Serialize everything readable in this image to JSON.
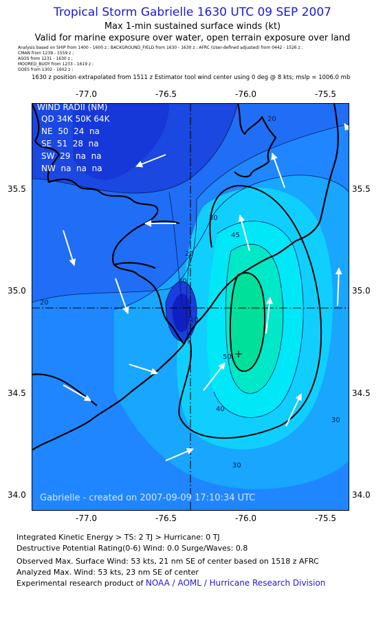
{
  "header": {
    "title": "Tropical Storm Gabrielle 1630 UTC 09 SEP 2007",
    "subtitle1": "Max 1-min sustained surface winds (kt)",
    "subtitle2": "Valid for marine exposure over water, open terrain exposure over land",
    "sources": [
      "Analysis based on SHIP from 1400 - 1600 z ;  BACKGROUND_FIELD from 1630 - 1630 z ;  AFRC (User-defined adjusted) from 0442 - 1526 z ;",
      "CMAN from 1239 - 1559 z ;",
      "ASOS from 1231 - 1630 z ;",
      "MOORED_BUOY from 1233 - 1619 z ;",
      "GOES from 1302 - 1602 z ;"
    ],
    "position_line": "1630 z position extrapolated from 1511 z Estimator tool wind center using 0 deg @ 8 kts; mslp = 1006.0 mb"
  },
  "map": {
    "lon_ticks": [
      "-77.0",
      "-76.5",
      "-76.0",
      "-75.5"
    ],
    "lat_ticks": [
      "35.5",
      "35.0",
      "34.5",
      "34.0"
    ],
    "wind_radii": {
      "title": "WIND RADII (NM)",
      "header": "QD 34K 50K 64K",
      "rows": [
        "NE  50  24  na",
        "SE  51  28  na",
        "SW  29  na  na",
        "NW  na  na  na"
      ]
    },
    "contour_labels": [
      "20",
      "20",
      "30",
      "20",
      "40",
      "50",
      "40",
      "30",
      "30",
      "45",
      "10"
    ],
    "credit": "Gabrielle - created on 2007-09-09 17:10:34 UTC",
    "colors": {
      "land_low": "#1a4ae6",
      "dark": "#0f1fd0",
      "mid": "#1f7dff",
      "cyan": "#00e5ff",
      "green": "#00e0a0"
    }
  },
  "footer": {
    "line1": "Integrated Kinetic Energy > TS: 2 TJ   > Hurricane: 0 TJ",
    "line2": "Destructive Potential Rating(0-6)   Wind: 0.0 Surge/Waves: 0.8",
    "line3": "Observed Max. Surface Wind: 53 kts, 21 nm SE of center based on 1518 z AFRC",
    "line4": "Analyzed Max. Wind: 53 kts, 23 nm SE of center",
    "line5_prefix": "Experimental research product of",
    "line5_link": "NOAA / AOML / Hurricane Research Division"
  }
}
